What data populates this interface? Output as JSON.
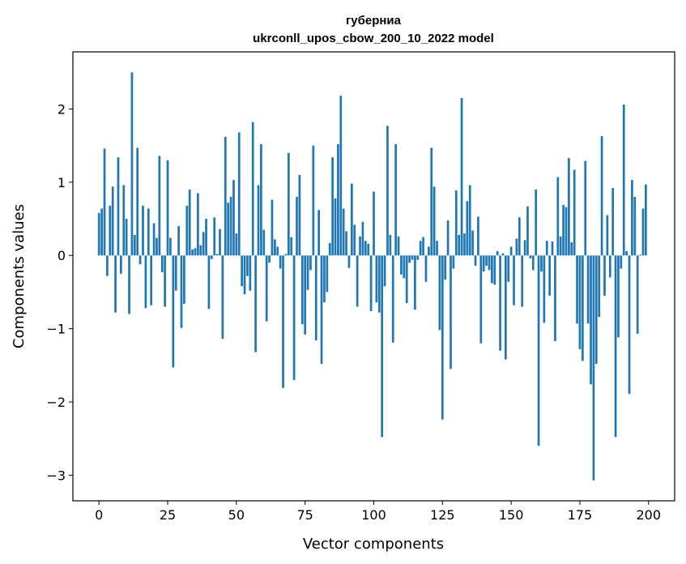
{
  "chart_data": {
    "type": "bar",
    "title": "губерниа",
    "subtitle": "ukrconll_upos_cbow_200_10_2022 model",
    "xlabel": "Vector components",
    "ylabel": "Components values",
    "xlim": [
      -9.5,
      209.5
    ],
    "ylim": [
      -3.35,
      2.78
    ],
    "xticks": [
      0,
      25,
      50,
      75,
      100,
      125,
      150,
      175,
      200
    ],
    "yticks": [
      -3,
      -2,
      -1,
      0,
      1,
      2
    ],
    "xtick_labels": [
      "0",
      "25",
      "50",
      "75",
      "100",
      "125",
      "150",
      "175",
      "200"
    ],
    "ytick_labels": [
      "−3",
      "−2",
      "−1",
      "0",
      "1",
      "2"
    ],
    "bar_color": "#1f77b4",
    "x": [
      0,
      1,
      2,
      3,
      4,
      5,
      6,
      7,
      8,
      9,
      10,
      11,
      12,
      13,
      14,
      15,
      16,
      17,
      18,
      19,
      20,
      21,
      22,
      23,
      24,
      25,
      26,
      27,
      28,
      29,
      30,
      31,
      32,
      33,
      34,
      35,
      36,
      37,
      38,
      39,
      40,
      41,
      42,
      43,
      44,
      45,
      46,
      47,
      48,
      49,
      50,
      51,
      52,
      53,
      54,
      55,
      56,
      57,
      58,
      59,
      60,
      61,
      62,
      63,
      64,
      65,
      66,
      67,
      68,
      69,
      70,
      71,
      72,
      73,
      74,
      75,
      76,
      77,
      78,
      79,
      80,
      81,
      82,
      83,
      84,
      85,
      86,
      87,
      88,
      89,
      90,
      91,
      92,
      93,
      94,
      95,
      96,
      97,
      98,
      99,
      100,
      101,
      102,
      103,
      104,
      105,
      106,
      107,
      108,
      109,
      110,
      111,
      112,
      113,
      114,
      115,
      116,
      117,
      118,
      119,
      120,
      121,
      122,
      123,
      124,
      125,
      126,
      127,
      128,
      129,
      130,
      131,
      132,
      133,
      134,
      135,
      136,
      137,
      138,
      139,
      140,
      141,
      142,
      143,
      144,
      145,
      146,
      147,
      148,
      149,
      150,
      151,
      152,
      153,
      154,
      155,
      156,
      157,
      158,
      159,
      160,
      161,
      162,
      163,
      164,
      165,
      166,
      167,
      168,
      169,
      170,
      171,
      172,
      173,
      174,
      175,
      176,
      177,
      178,
      179,
      180,
      181,
      182,
      183,
      184,
      185,
      186,
      187,
      188,
      189,
      190,
      191,
      192,
      193,
      194,
      195,
      196,
      197,
      198,
      199
    ],
    "values": [
      0.58,
      0.64,
      1.46,
      -0.28,
      0.68,
      0.94,
      -0.78,
      1.34,
      -0.25,
      0.96,
      0.5,
      -0.8,
      2.5,
      0.28,
      1.47,
      -0.12,
      0.68,
      -0.72,
      0.64,
      -0.68,
      0.44,
      0.24,
      1.36,
      -0.23,
      -0.7,
      1.3,
      0.24,
      -1.53,
      -0.48,
      0.4,
      -0.99,
      -0.66,
      0.68,
      0.9,
      0.08,
      0.1,
      0.85,
      0.14,
      0.32,
      0.5,
      -0.73,
      -0.05,
      0.52,
      0.02,
      0.36,
      -1.14,
      1.62,
      0.72,
      0.8,
      1.03,
      0.3,
      1.68,
      -0.42,
      -0.53,
      -0.28,
      -0.48,
      1.82,
      -1.32,
      0.96,
      1.52,
      0.35,
      -0.9,
      -0.1,
      0.76,
      0.22,
      0.12,
      -0.18,
      -1.81,
      0.02,
      1.4,
      0.25,
      -1.7,
      0.8,
      1.1,
      -0.94,
      -1.08,
      -0.47,
      -0.2,
      1.5,
      -1.16,
      0.62,
      -1.48,
      -0.64,
      -0.5,
      0.17,
      1.34,
      0.78,
      1.52,
      2.18,
      0.64,
      0.33,
      -0.17,
      0.98,
      0.42,
      -0.7,
      0.26,
      0.46,
      0.2,
      0.16,
      -0.76,
      0.87,
      -0.64,
      -0.78,
      -2.48,
      -0.42,
      1.77,
      0.28,
      -1.19,
      1.52,
      0.26,
      -0.26,
      -0.31,
      -0.65,
      -0.1,
      -0.06,
      -0.74,
      -0.06,
      0.2,
      0.25,
      -0.36,
      0.12,
      1.47,
      0.94,
      0.2,
      -1.02,
      -2.24,
      -0.33,
      0.48,
      -1.55,
      -0.18,
      0.89,
      0.28,
      2.15,
      0.3,
      0.74,
      0.96,
      0.34,
      -0.14,
      0.53,
      -1.2,
      -0.22,
      -0.14,
      -0.2,
      -0.38,
      -0.4,
      0.06,
      -1.3,
      0.03,
      -1.42,
      -0.36,
      0.12,
      -0.68,
      0.23,
      0.52,
      -0.7,
      0.21,
      0.67,
      -0.04,
      -0.2,
      0.9,
      -2.6,
      -0.22,
      -0.92,
      0.2,
      -0.55,
      0.19,
      -1.17,
      1.07,
      0.26,
      0.69,
      0.66,
      1.33,
      0.18,
      1.17,
      -0.93,
      -1.28,
      -1.44,
      1.29,
      -0.93,
      -1.76,
      -3.07,
      -1.48,
      -0.84,
      1.63,
      -0.55,
      0.55,
      -0.3,
      0.92,
      -2.48,
      -1.12,
      -0.18,
      2.06,
      0.06,
      -1.89,
      1.03,
      0.8,
      -1.07,
      0.01,
      0.64,
      0.97
    ]
  }
}
